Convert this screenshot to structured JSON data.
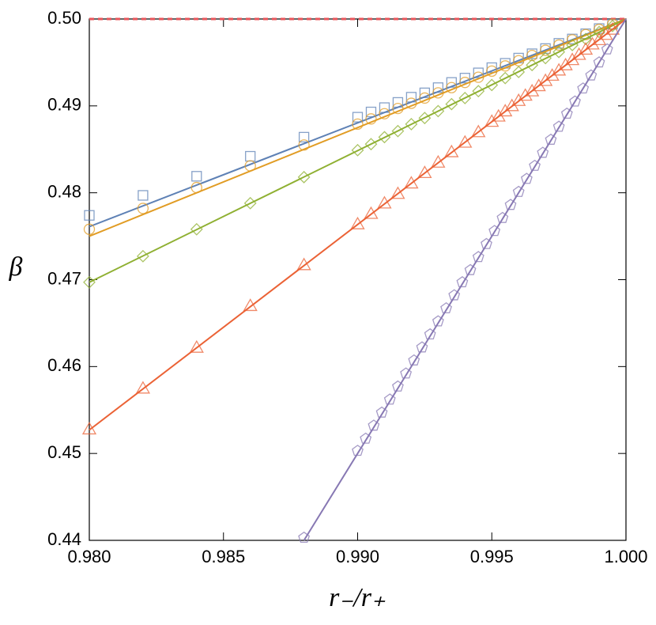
{
  "chart_data": {
    "type": "scatter",
    "x_label": "r₋/r₊",
    "y_label": "β",
    "xlim": [
      0.98,
      1.0
    ],
    "ylim": [
      0.44,
      0.5
    ],
    "xticks": [
      {
        "value": 0.98,
        "label": "0.980"
      },
      {
        "value": 0.985,
        "label": "0.985"
      },
      {
        "value": 0.99,
        "label": "0.990"
      },
      {
        "value": 0.995,
        "label": "0.995"
      },
      {
        "value": 1.0,
        "label": "1.000"
      }
    ],
    "yticks": [
      0.44,
      0.45,
      0.46,
      0.47,
      0.48,
      0.49,
      {
        "value": 0.5,
        "label": "0.50"
      }
    ],
    "reference_line": {
      "value": 0.5,
      "color": "#e8545a",
      "dashed": true
    },
    "series": [
      {
        "marker": "square",
        "color": "#5e81b5",
        "x": [
          0.98,
          0.982,
          0.984,
          0.986,
          0.988,
          0.99,
          0.9905,
          0.991,
          0.9915,
          0.992,
          0.9925,
          0.993,
          0.9935,
          0.994,
          0.9945,
          0.995,
          0.9955,
          0.996,
          0.9965,
          0.997,
          0.9975,
          0.998,
          0.9985,
          0.999,
          0.9995
        ],
        "values": [
          0.4774,
          0.4797,
          0.4819,
          0.4842,
          0.4864,
          0.4887,
          0.4893,
          0.4898,
          0.4904,
          0.491,
          0.4915,
          0.4921,
          0.4927,
          0.4932,
          0.4938,
          0.4944,
          0.4949,
          0.4955,
          0.496,
          0.4966,
          0.4972,
          0.4977,
          0.4983,
          0.4989,
          0.4994
        ],
        "fit_x": [
          0.98,
          1.0
        ],
        "fit_values": [
          0.4761,
          0.5
        ]
      },
      {
        "marker": "circle",
        "color": "#e19c24",
        "x": [
          0.98,
          0.982,
          0.984,
          0.986,
          0.988,
          0.99,
          0.9905,
          0.991,
          0.9915,
          0.992,
          0.9925,
          0.993,
          0.9935,
          0.994,
          0.9945,
          0.995,
          0.9955,
          0.996,
          0.9965,
          0.997,
          0.9975,
          0.998,
          0.9985,
          0.999,
          0.9995
        ],
        "values": [
          0.4758,
          0.4782,
          0.4806,
          0.4831,
          0.4855,
          0.4879,
          0.4885,
          0.4891,
          0.4897,
          0.4903,
          0.4909,
          0.4915,
          0.4921,
          0.4927,
          0.4933,
          0.494,
          0.4946,
          0.4952,
          0.4958,
          0.4964,
          0.497,
          0.4976,
          0.4982,
          0.4988,
          0.4994
        ],
        "fit_x": [
          0.98,
          1.0
        ],
        "fit_values": [
          0.475,
          0.5
        ]
      },
      {
        "marker": "diamond",
        "color": "#8fb032",
        "x": [
          0.98,
          0.982,
          0.984,
          0.986,
          0.988,
          0.99,
          0.9905,
          0.991,
          0.9915,
          0.992,
          0.9925,
          0.993,
          0.9935,
          0.994,
          0.9945,
          0.995,
          0.9955,
          0.996,
          0.9965,
          0.997,
          0.9975,
          0.998,
          0.9985,
          0.999,
          0.9995
        ],
        "values": [
          0.4697,
          0.4727,
          0.4758,
          0.4788,
          0.4818,
          0.4849,
          0.4856,
          0.4864,
          0.4871,
          0.4879,
          0.4886,
          0.4894,
          0.4902,
          0.4909,
          0.4917,
          0.4924,
          0.4932,
          0.4939,
          0.4947,
          0.4955,
          0.4962,
          0.497,
          0.4977,
          0.4985,
          0.4992
        ],
        "fit_x": [
          0.98,
          1.0
        ],
        "fit_values": [
          0.4697,
          0.5
        ]
      },
      {
        "marker": "triangle",
        "color": "#eb6235",
        "x": [
          0.98,
          0.982,
          0.984,
          0.986,
          0.988,
          0.99,
          0.9905,
          0.991,
          0.9915,
          0.992,
          0.9925,
          0.993,
          0.9935,
          0.994,
          0.9945,
          0.995,
          0.99525,
          0.9955,
          0.99575,
          0.996,
          0.99625,
          0.9965,
          0.99675,
          0.997,
          0.99725,
          0.9975,
          0.99775,
          0.998,
          0.99825,
          0.9985,
          0.99875,
          0.999,
          0.99925,
          0.9995
        ],
        "values": [
          0.4528,
          0.4575,
          0.4622,
          0.467,
          0.4717,
          0.4764,
          0.4776,
          0.4788,
          0.4799,
          0.4811,
          0.4823,
          0.4835,
          0.4847,
          0.4858,
          0.487,
          0.4882,
          0.4888,
          0.4894,
          0.49,
          0.4906,
          0.4912,
          0.4917,
          0.4923,
          0.4929,
          0.4935,
          0.4941,
          0.4947,
          0.4953,
          0.4959,
          0.4965,
          0.4971,
          0.4976,
          0.4982,
          0.4988
        ],
        "fit_x": [
          0.98,
          1.0
        ],
        "fit_values": [
          0.4527,
          0.5
        ]
      },
      {
        "marker": "pentagon",
        "color": "#8778b3",
        "x": [
          0.988,
          0.99,
          0.9903,
          0.9906,
          0.9909,
          0.9912,
          0.9915,
          0.9918,
          0.9921,
          0.9924,
          0.9927,
          0.993,
          0.9933,
          0.9936,
          0.9939,
          0.9942,
          0.9945,
          0.9948,
          0.9951,
          0.9954,
          0.9957,
          0.996,
          0.9963,
          0.9966,
          0.9969,
          0.9972,
          0.9975,
          0.9978,
          0.9981,
          0.9984,
          0.9987,
          0.999,
          0.9993
        ],
        "values": [
          0.4403,
          0.4503,
          0.4517,
          0.4532,
          0.4547,
          0.4562,
          0.4577,
          0.4592,
          0.4607,
          0.4622,
          0.4637,
          0.4652,
          0.4667,
          0.4682,
          0.4697,
          0.4711,
          0.4726,
          0.4741,
          0.4756,
          0.4771,
          0.4786,
          0.4801,
          0.4816,
          0.4831,
          0.4846,
          0.4861,
          0.4876,
          0.4891,
          0.4905,
          0.492,
          0.4935,
          0.495,
          0.4965
        ],
        "fit_x": [
          0.988,
          1.0
        ],
        "fit_values": [
          0.44,
          0.5
        ]
      }
    ]
  }
}
